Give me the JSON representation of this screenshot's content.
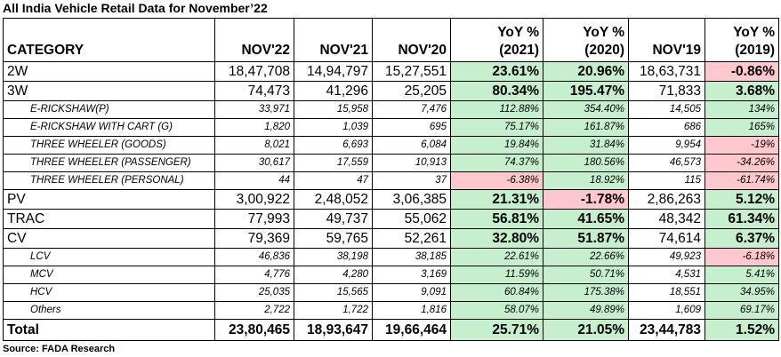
{
  "title": "All India Vehicle Retail Data for November’22",
  "source": "Source: FADA Research",
  "colors": {
    "positive_bg": "#c6efce",
    "negative_bg": "#ffc7ce"
  },
  "headers": {
    "category": "CATEGORY",
    "nov22": "NOV'22",
    "nov21": "NOV'21",
    "nov20": "NOV'20",
    "yoy2021_top": "YoY %",
    "yoy2021_bottom": "(2021)",
    "yoy2020_top": "YoY %",
    "yoy2020_bottom": "(2020)",
    "nov19": "NOV'19",
    "yoy2019_top": "YoY %",
    "yoy2019_bottom": "(2019)"
  },
  "rows": [
    {
      "type": "main",
      "category": "2W",
      "nov22": "18,47,708",
      "nov21": "14,94,797",
      "nov20": "15,27,551",
      "yoy2021": "23.61%",
      "yoy2021_sign": "pos",
      "yoy2020": "20.96%",
      "yoy2020_sign": "pos",
      "nov19": "18,63,731",
      "yoy2019": "-0.86%",
      "yoy2019_sign": "neg"
    },
    {
      "type": "main",
      "category": "3W",
      "nov22": "74,473",
      "nov21": "41,296",
      "nov20": "25,205",
      "yoy2021": "80.34%",
      "yoy2021_sign": "pos",
      "yoy2020": "195.47%",
      "yoy2020_sign": "pos",
      "nov19": "71,833",
      "yoy2019": "3.68%",
      "yoy2019_sign": "pos"
    },
    {
      "type": "sub",
      "category": "E-RICKSHAW(P)",
      "nov22": "33,971",
      "nov21": "15,958",
      "nov20": "7,476",
      "yoy2021": "112.88%",
      "yoy2021_sign": "pos",
      "yoy2020": "354.40%",
      "yoy2020_sign": "pos",
      "nov19": "14,505",
      "yoy2019": "134%",
      "yoy2019_sign": "pos"
    },
    {
      "type": "sub",
      "category": "E-RICKSHAW WITH CART (G)",
      "nov22": "1,820",
      "nov21": "1,039",
      "nov20": "695",
      "yoy2021": "75.17%",
      "yoy2021_sign": "pos",
      "yoy2020": "161.87%",
      "yoy2020_sign": "pos",
      "nov19": "686",
      "yoy2019": "165%",
      "yoy2019_sign": "pos"
    },
    {
      "type": "sub",
      "category": "THREE WHEELER (GOODS)",
      "nov22": "8,021",
      "nov21": "6,693",
      "nov20": "6,084",
      "yoy2021": "19.84%",
      "yoy2021_sign": "pos",
      "yoy2020": "31.84%",
      "yoy2020_sign": "pos",
      "nov19": "9,954",
      "yoy2019": "-19%",
      "yoy2019_sign": "neg"
    },
    {
      "type": "sub",
      "category": "THREE WHEELER (PASSENGER)",
      "nov22": "30,617",
      "nov21": "17,559",
      "nov20": "10,913",
      "yoy2021": "74.37%",
      "yoy2021_sign": "pos",
      "yoy2020": "180.56%",
      "yoy2020_sign": "pos",
      "nov19": "46,573",
      "yoy2019": "-34.26%",
      "yoy2019_sign": "neg"
    },
    {
      "type": "sub",
      "category": "THREE WHEELER (PERSONAL)",
      "nov22": "44",
      "nov21": "47",
      "nov20": "37",
      "yoy2021": "-6.38%",
      "yoy2021_sign": "neg",
      "yoy2020": "18.92%",
      "yoy2020_sign": "pos",
      "nov19": "115",
      "yoy2019": "-61.74%",
      "yoy2019_sign": "neg"
    },
    {
      "type": "main",
      "category": "PV",
      "nov22": "3,00,922",
      "nov21": "2,48,052",
      "nov20": "3,06,385",
      "yoy2021": "21.31%",
      "yoy2021_sign": "pos",
      "yoy2020": "-1.78%",
      "yoy2020_sign": "neg",
      "nov19": "2,86,263",
      "yoy2019": "5.12%",
      "yoy2019_sign": "pos"
    },
    {
      "type": "main",
      "category": "TRAC",
      "nov22": "77,993",
      "nov21": "49,737",
      "nov20": "55,062",
      "yoy2021": "56.81%",
      "yoy2021_sign": "pos",
      "yoy2020": "41.65%",
      "yoy2020_sign": "pos",
      "nov19": "48,342",
      "yoy2019": "61.34%",
      "yoy2019_sign": "pos"
    },
    {
      "type": "main",
      "category": "CV",
      "nov22": "79,369",
      "nov21": "59,765",
      "nov20": "52,261",
      "yoy2021": "32.80%",
      "yoy2021_sign": "pos",
      "yoy2020": "51.87%",
      "yoy2020_sign": "pos",
      "nov19": "74,614",
      "yoy2019": "6.37%",
      "yoy2019_sign": "pos"
    },
    {
      "type": "sub",
      "category": "LCV",
      "nov22": "46,836",
      "nov21": "38,198",
      "nov20": "38,185",
      "yoy2021": "22.61%",
      "yoy2021_sign": "pos",
      "yoy2020": "22.66%",
      "yoy2020_sign": "pos",
      "nov19": "49,923",
      "yoy2019": "-6.18%",
      "yoy2019_sign": "neg"
    },
    {
      "type": "sub",
      "category": "MCV",
      "nov22": "4,776",
      "nov21": "4,280",
      "nov20": "3,169",
      "yoy2021": "11.59%",
      "yoy2021_sign": "pos",
      "yoy2020": "50.71%",
      "yoy2020_sign": "pos",
      "nov19": "4,531",
      "yoy2019": "5.41%",
      "yoy2019_sign": "pos"
    },
    {
      "type": "sub",
      "category": "HCV",
      "nov22": "25,035",
      "nov21": "15,565",
      "nov20": "9,091",
      "yoy2021": "60.84%",
      "yoy2021_sign": "pos",
      "yoy2020": "175.38%",
      "yoy2020_sign": "pos",
      "nov19": "18,551",
      "yoy2019": "34.95%",
      "yoy2019_sign": "pos"
    },
    {
      "type": "sub",
      "category": "Others",
      "nov22": "2,722",
      "nov21": "1,722",
      "nov20": "1,816",
      "yoy2021": "58.07%",
      "yoy2021_sign": "pos",
      "yoy2020": "49.89%",
      "yoy2020_sign": "pos",
      "nov19": "1,609",
      "yoy2019": "69.17%",
      "yoy2019_sign": "pos"
    },
    {
      "type": "total",
      "category": "Total",
      "nov22": "23,80,465",
      "nov21": "18,93,647",
      "nov20": "19,66,464",
      "yoy2021": "25.71%",
      "yoy2021_sign": "pos",
      "yoy2020": "21.05%",
      "yoy2020_sign": "pos",
      "nov19": "23,44,783",
      "yoy2019": "1.52%",
      "yoy2019_sign": "pos"
    }
  ]
}
